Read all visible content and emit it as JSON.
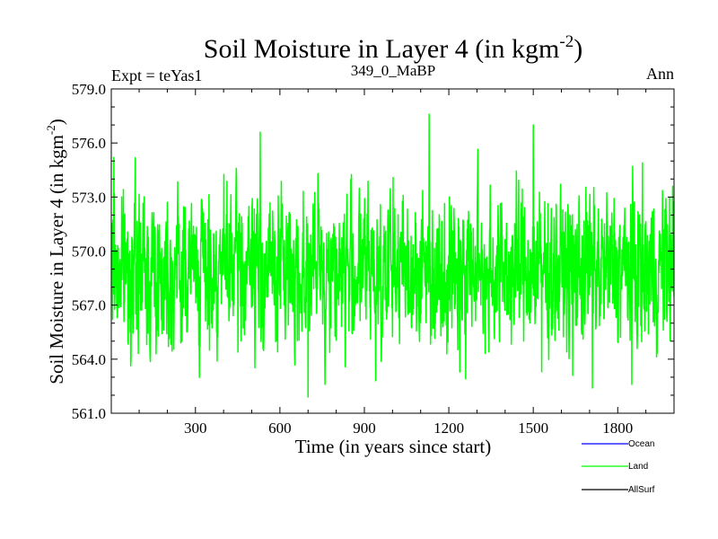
{
  "chart_data": {
    "type": "line",
    "title": "Soil Moisture in Layer 4 (in kgm",
    "title_sup": "-2",
    "title_end": ")",
    "left_subtitle": "Expt = teYas1",
    "center_subtitle": "349_0_MaBP",
    "right_subtitle": "Ann",
    "xlabel": "Time (in years since start)",
    "ylabel": "Soil Moisture in Layer 4 (in kgm",
    "ylabel_sup": "-2",
    "ylabel_end": ")",
    "xlim": [
      1,
      2000
    ],
    "ylim": [
      561.0,
      579.0
    ],
    "x_ticks": [
      300,
      600,
      900,
      1200,
      1500,
      1800
    ],
    "x_tick_labels": [
      "300",
      "600",
      "900",
      "1200",
      "1500",
      "1800"
    ],
    "y_ticks": [
      561,
      564,
      567,
      570,
      573,
      576,
      579
    ],
    "y_tick_labels": [
      "561.0",
      "564.0",
      "567.0",
      "570.0",
      "573.0",
      "576.0",
      "579.0"
    ],
    "series": [
      {
        "name": "Land",
        "color": "#00ff00",
        "noise": {
          "n": 2000,
          "mean": 569.0,
          "amplitude": 1.9,
          "seed": 7
        },
        "features": [
          {
            "x": 10,
            "value": 575.2
          },
          {
            "x": 60,
            "value": 565.0
          },
          {
            "x": 160,
            "value": 564.3
          },
          {
            "x": 350,
            "value": 564.5
          },
          {
            "x": 530,
            "value": 576.6
          },
          {
            "x": 700,
            "value": 561.9
          },
          {
            "x": 760,
            "value": 562.6
          },
          {
            "x": 940,
            "value": 562.8
          },
          {
            "x": 1130,
            "value": 577.6
          },
          {
            "x": 1260,
            "value": 562.9
          },
          {
            "x": 1500,
            "value": 577.0
          },
          {
            "x": 1530,
            "value": 563.3
          },
          {
            "x": 1640,
            "value": 563.1
          },
          {
            "x": 1710,
            "value": 562.4
          },
          {
            "x": 1850,
            "value": 562.6
          },
          {
            "x": 1995,
            "value": 573.6
          }
        ]
      },
      {
        "name": "Ocean",
        "color": "#0000ff",
        "values": []
      },
      {
        "name": "AllSurf",
        "color": "#000000",
        "values": []
      }
    ],
    "legend": [
      {
        "name": "Ocean",
        "color": "#0000ff"
      },
      {
        "name": "Land",
        "color": "#00ff00"
      },
      {
        "name": "AllSurf",
        "color": "#000000"
      }
    ]
  }
}
